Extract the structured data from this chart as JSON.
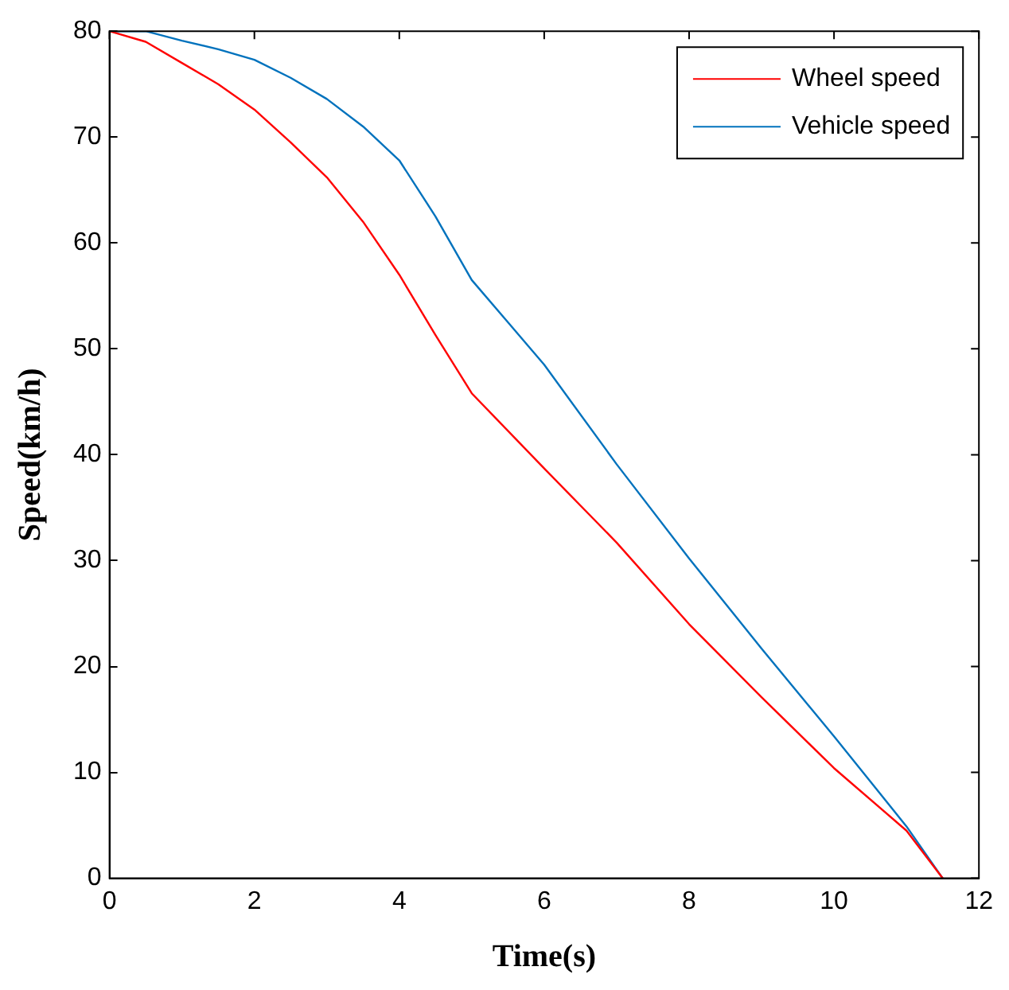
{
  "chart_data": {
    "type": "line",
    "xlabel": "Time(s)",
    "ylabel": "Speed(km/h)",
    "xlim": [
      0,
      12
    ],
    "xticks": [
      0,
      2,
      4,
      6,
      8,
      10,
      12
    ],
    "ylim": [
      0,
      80
    ],
    "yticks": [
      0,
      10,
      20,
      30,
      40,
      50,
      60,
      70,
      80
    ],
    "grid": false,
    "legend": "top right",
    "series": [
      {
        "name": "Wheel speed",
        "color": "#ff0000",
        "x": [
          0,
          0.5,
          1,
          1.5,
          2,
          2.5,
          3,
          3.5,
          4,
          4.5,
          5,
          6,
          7,
          8,
          9,
          10,
          11,
          11.5
        ],
        "values": [
          80,
          79,
          77,
          75,
          72.6,
          69.5,
          66.2,
          62,
          57,
          51.3,
          45.8,
          38.7,
          31.7,
          24,
          17.1,
          10.4,
          4.5,
          0
        ]
      },
      {
        "name": "Vehicle speed",
        "color": "#0072bd",
        "x": [
          0,
          0.5,
          1,
          1.5,
          2,
          2.5,
          3,
          3.5,
          4,
          4.5,
          5,
          5.5,
          6,
          7,
          8,
          9,
          10,
          11,
          11.5
        ],
        "values": [
          80,
          80,
          79.1,
          78.3,
          77.3,
          75.6,
          73.6,
          71,
          67.8,
          62.5,
          56.5,
          52.5,
          48.5,
          39.1,
          30.2,
          21.7,
          13.4,
          4.9,
          0
        ]
      }
    ]
  }
}
